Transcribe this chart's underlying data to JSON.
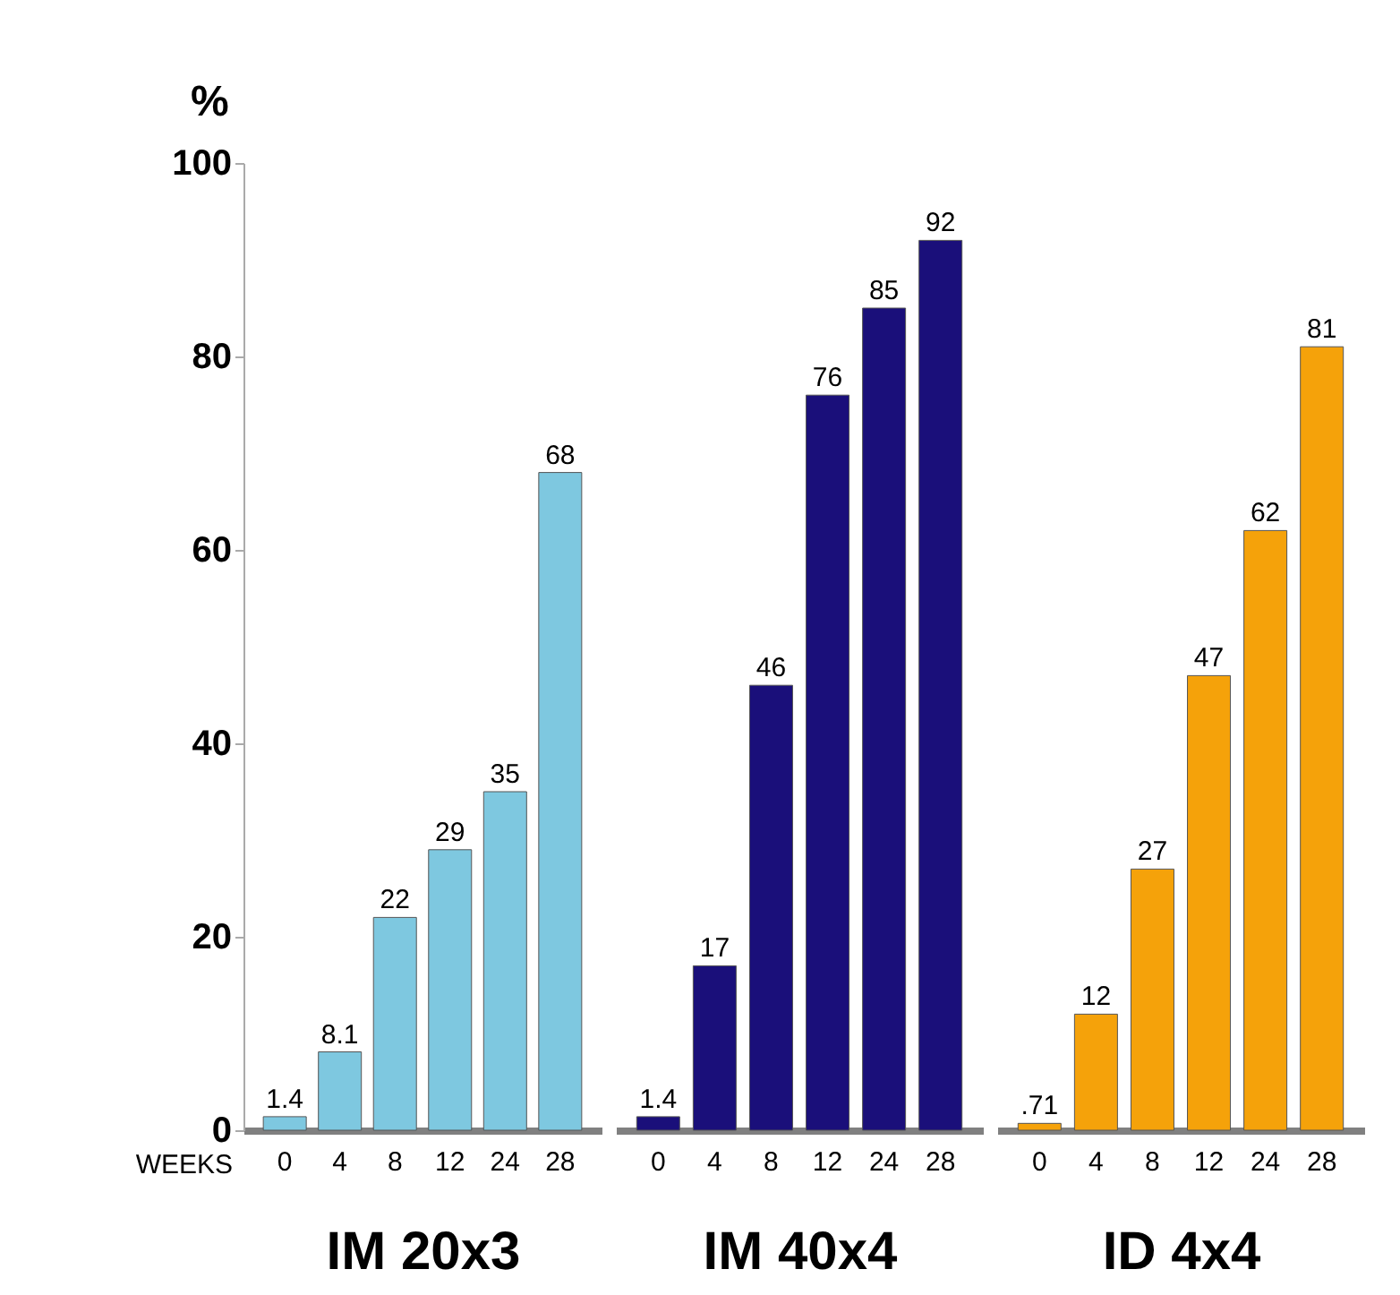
{
  "chart_data": [
    {
      "type": "bar",
      "xlabel": "IM 20x3",
      "ylabel": "%",
      "annotations": [
        "WEEKS"
      ],
      "categories": [
        "0",
        "4",
        "8",
        "12",
        "24",
        "28"
      ],
      "values": [
        1.4,
        8.1,
        22,
        29,
        35,
        68
      ],
      "color": "#7ec8e0",
      "ylim": [
        0,
        100
      ],
      "yticks": [
        0,
        20,
        40,
        60,
        80,
        100
      ],
      "data_labels": true,
      "grid": false
    },
    {
      "type": "bar",
      "xlabel": "IM 40x4",
      "categories": [
        "0",
        "4",
        "8",
        "12",
        "24",
        "28"
      ],
      "values": [
        1.4,
        17,
        46,
        76,
        85,
        92
      ],
      "color": "#1a0f7a",
      "ylim": [
        0,
        100
      ],
      "tick_labels": "x",
      "data_labels": true,
      "grid": false
    },
    {
      "type": "bar",
      "xlabel": "ID 4x4",
      "categories": [
        "0",
        "4",
        "8",
        "12",
        "24",
        "28"
      ],
      "values": [
        0.71,
        12,
        27,
        47,
        62,
        81
      ],
      "value_labels": [
        ".71",
        "12",
        "27",
        "47",
        "62",
        "81"
      ],
      "color": "#f5a20a",
      "ylim": [
        0,
        100
      ],
      "tick_labels": "x",
      "grid": false
    }
  ]
}
